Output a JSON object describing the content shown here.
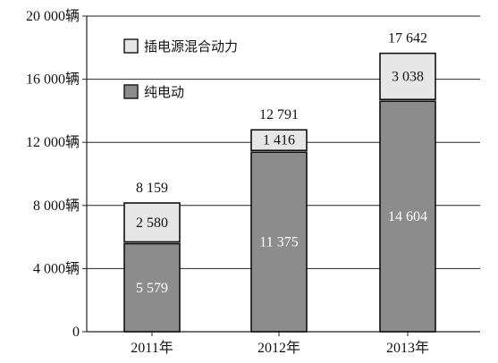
{
  "chart_data": {
    "type": "bar",
    "stacked": true,
    "categories": [
      "2011年",
      "2012年",
      "2013年"
    ],
    "series": [
      {
        "name": "纯电动",
        "values": [
          5579,
          11375,
          14604
        ],
        "color": "#8c8c8c",
        "label_color": "#ffffff"
      },
      {
        "name": "插电源混合动力",
        "values": [
          2580,
          1416,
          3038
        ],
        "color": "#e6e6e6",
        "label_color": "#111111"
      }
    ],
    "segment_labels": [
      [
        "5 579",
        "11 375",
        "14 604"
      ],
      [
        "2 580",
        "1 416",
        "3 038"
      ]
    ],
    "totals": [
      8159,
      12791,
      17642
    ],
    "total_labels": [
      "8 159",
      "12 791",
      "17 642"
    ],
    "ylim": [
      0,
      20000
    ],
    "yticks": [
      0,
      4000,
      8000,
      12000,
      16000,
      20000
    ],
    "ytick_labels": [
      "0",
      "4 000辆",
      "8 000辆",
      "12 000辆",
      "16 000辆",
      "20 000辆"
    ],
    "grid": true,
    "legend": {
      "placement": "top-left",
      "entries": [
        "插电源混合动力",
        "纯电动"
      ]
    },
    "title": "",
    "xlabel": "",
    "ylabel": ""
  }
}
